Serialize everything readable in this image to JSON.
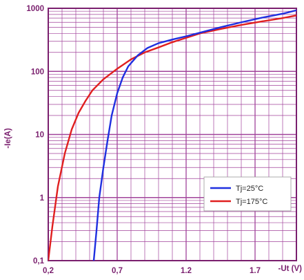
{
  "chart_data": {
    "type": "line",
    "xlabel": "-Ut (V)",
    "ylabel": "-Ie(A)",
    "xlim": [
      0.2,
      2.0
    ],
    "ylim": [
      0.1,
      1000
    ],
    "yscale": "log",
    "x_ticks": [
      "0,2",
      "0,7",
      "1.2",
      "1.7"
    ],
    "x_tick_values": [
      0.2,
      0.7,
      1.2,
      1.7
    ],
    "y_ticks": [
      "0,1",
      "1",
      "10",
      "100",
      "1000"
    ],
    "y_tick_values": [
      0.1,
      1,
      10,
      100,
      1000
    ],
    "grid": true,
    "legend_position": "lower-right",
    "grid_color": "#a0429a",
    "series": [
      {
        "name": "Tj=25°C",
        "color": "#1f2fe0",
        "x": [
          0.53,
          0.55,
          0.57,
          0.6,
          0.63,
          0.66,
          0.7,
          0.74,
          0.78,
          0.85,
          0.92,
          1.0,
          1.1,
          1.2,
          1.3,
          1.45,
          1.6,
          1.75,
          1.9,
          2.0
        ],
        "y": [
          0.1,
          0.3,
          1,
          3,
          8,
          20,
          45,
          80,
          120,
          180,
          235,
          280,
          320,
          360,
          410,
          500,
          600,
          710,
          820,
          930
        ]
      },
      {
        "name": "Tj=175°C",
        "color": "#e01f1f",
        "x": [
          0.2,
          0.23,
          0.27,
          0.32,
          0.37,
          0.42,
          0.47,
          0.52,
          0.6,
          0.7,
          0.8,
          0.9,
          1.0,
          1.1,
          1.2,
          1.3,
          1.45,
          1.6,
          1.75,
          1.9,
          2.0
        ],
        "y": [
          0.1,
          0.35,
          1.5,
          5,
          12,
          22,
          34,
          50,
          75,
          110,
          155,
          200,
          240,
          290,
          340,
          400,
          470,
          545,
          620,
          700,
          770
        ]
      }
    ]
  }
}
